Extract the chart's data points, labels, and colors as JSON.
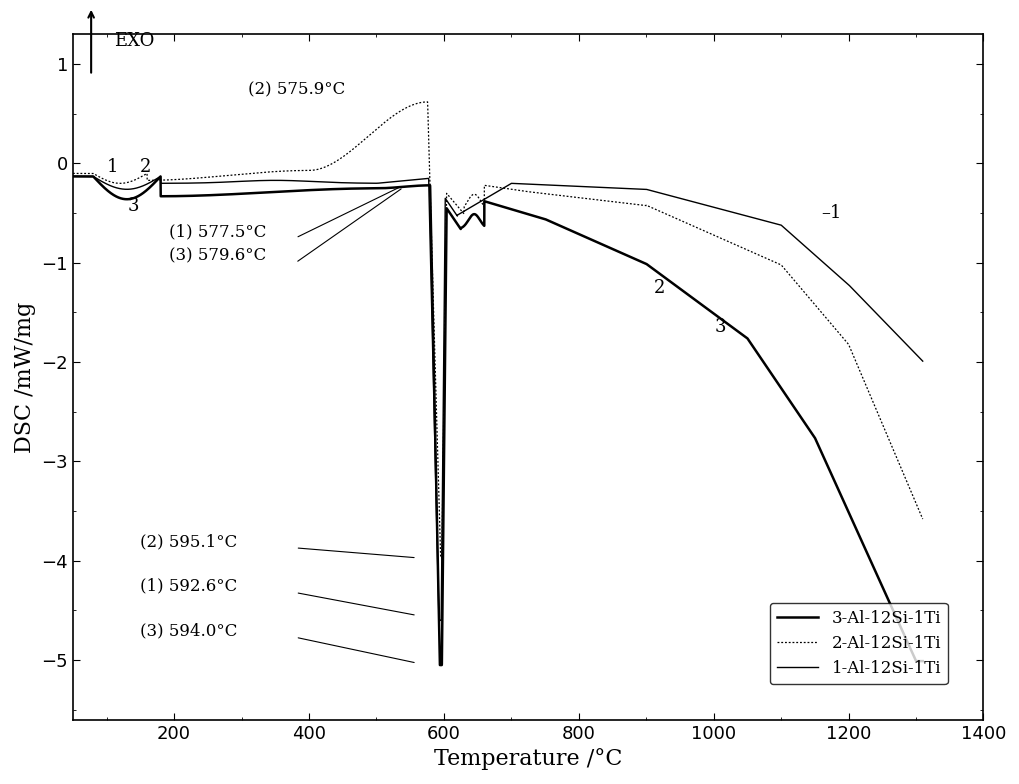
{
  "xlabel": "Temperature /°C",
  "ylabel": "DSC /mW/mg",
  "xlim": [
    50,
    1400
  ],
  "ylim": [
    -5.6,
    1.3
  ],
  "yticks": [
    1,
    0,
    -1,
    -2,
    -3,
    -4,
    -5
  ],
  "xticks": [
    200,
    400,
    600,
    800,
    1000,
    1200,
    1400
  ],
  "exo_label": "EXO",
  "curve_color": "#000000",
  "background_color": "#ffffff",
  "fontsize_axis_label": 16,
  "fontsize_tick": 13,
  "legend_entries": [
    {
      "label": "3-Al-12Si-1Ti"
    },
    {
      "label": "2-Al-12Si-1Ti"
    },
    {
      "label": "1-Al-12Si-1Ti"
    }
  ]
}
